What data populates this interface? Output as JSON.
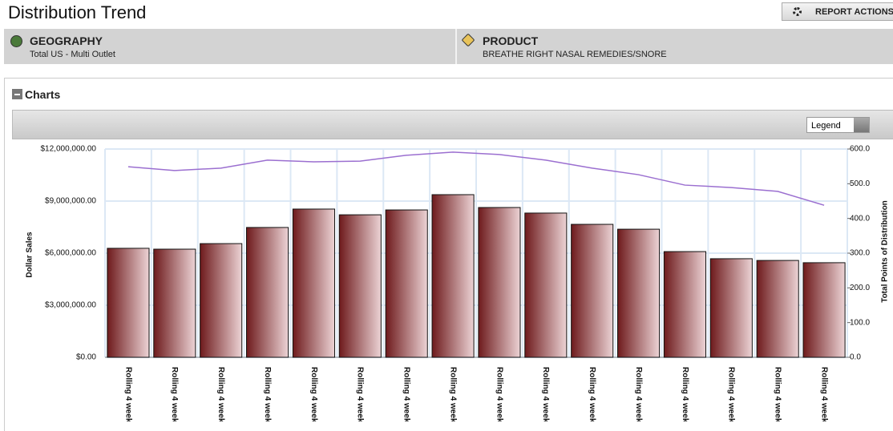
{
  "header": {
    "title": "Distribution Trend",
    "action_button": "REPORT ACTIONS"
  },
  "filters": [
    {
      "label": "GEOGRAPHY",
      "value": "Total US - Multi Outlet"
    },
    {
      "label": "PRODUCT",
      "value": "BREATHE RIGHT NASAL REMEDIES/SNORE"
    }
  ],
  "panel": {
    "title": "Charts",
    "legend_button": "Legend"
  },
  "chart_data": {
    "type": "bar",
    "ylabel": "Dollar Sales",
    "y2label": "Total Points of Distribution",
    "categories": [
      "Rolling 4 week...",
      "Rolling 4 week...",
      "Rolling 4 week...",
      "Rolling 4 week...",
      "Rolling 4 week...",
      "Rolling 4 week...",
      "Rolling 4 week...",
      "Rolling 4 week...",
      "Rolling 4 week...",
      "Rolling 4 week...",
      "Rolling 4 week...",
      "Rolling 4 week...",
      "Rolling 4 week...",
      "Rolling 4 week...",
      "Rolling 4 week...",
      "Rolling 4 week..."
    ],
    "series": [
      {
        "type": "bar",
        "color": "#6e1a1c",
        "values": [
          6280000,
          6230000,
          6550000,
          7480000,
          8540000,
          8210000,
          8490000,
          9370000,
          8630000,
          8310000,
          7660000,
          7380000,
          6090000,
          5680000,
          5580000,
          5450000
        ]
      },
      {
        "type": "line",
        "axis": "y2",
        "color": "#9b6fd0",
        "values": [
          549,
          538,
          545,
          568,
          563,
          565,
          582,
          591,
          584,
          568,
          545,
          526,
          496,
          489,
          478,
          438
        ]
      }
    ],
    "ylim": [
      0,
      12000000
    ],
    "yticks": [
      {
        "value": 0,
        "label": "$0.00"
      },
      {
        "value": 3000000,
        "label": "$3,000,000.00"
      },
      {
        "value": 6000000,
        "label": "$6,000,000.00"
      },
      {
        "value": 9000000,
        "label": "$9,000,000.00"
      },
      {
        "value": 12000000,
        "label": "$12,000,000.00"
      }
    ],
    "y2lim": [
      0,
      600
    ],
    "y2ticks": [
      {
        "value": 0,
        "label": "0.0"
      },
      {
        "value": 100,
        "label": "100.0"
      },
      {
        "value": 200,
        "label": "200.0"
      },
      {
        "value": 300,
        "label": "300.0"
      },
      {
        "value": 400,
        "label": "400.0"
      },
      {
        "value": 500,
        "label": "500.0"
      },
      {
        "value": 600,
        "label": "600.0"
      }
    ],
    "grid": true
  }
}
